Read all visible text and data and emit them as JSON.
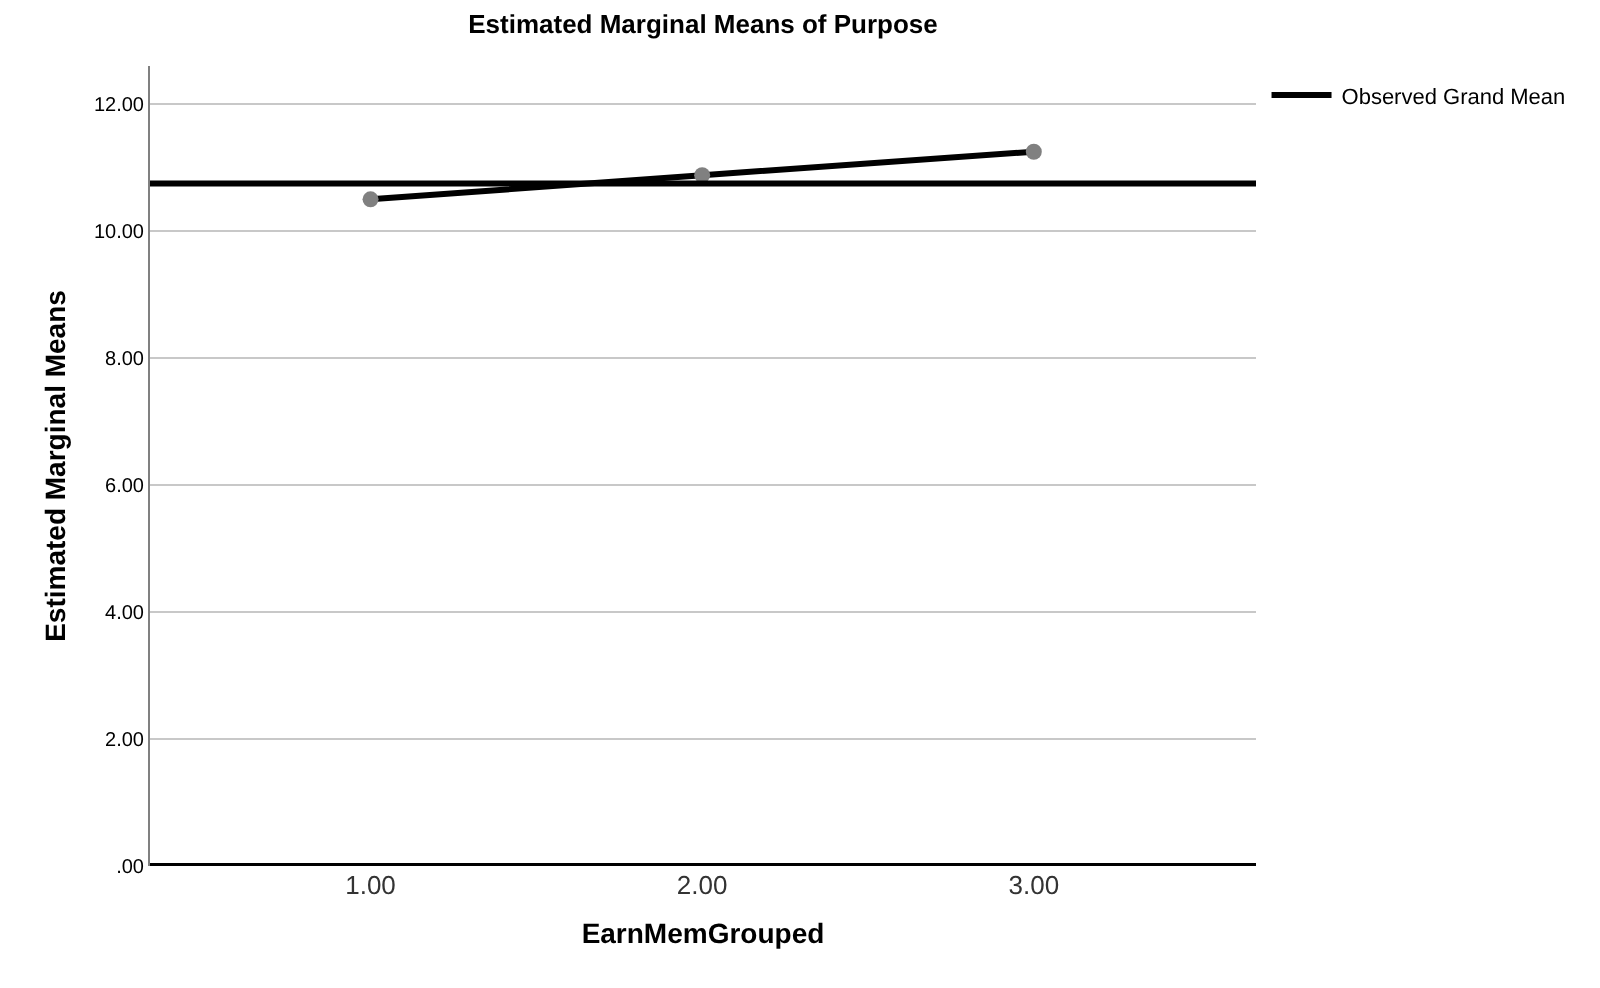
{
  "chart_data": {
    "type": "line",
    "title": "Estimated Marginal Means of Purpose",
    "xlabel": "EarnMemGrouped",
    "ylabel": "Estimated Marginal Means",
    "categories": [
      "1.00",
      "2.00",
      "3.00"
    ],
    "series": [
      {
        "color": "#000000",
        "values": [
          10.5,
          10.88,
          11.25
        ]
      }
    ],
    "ylim": [
      0,
      12.6
    ],
    "yticks": [
      {
        "value": 0,
        "label": ".00"
      },
      {
        "value": 2,
        "label": "2.00"
      },
      {
        "value": 4,
        "label": "4.00"
      },
      {
        "value": 6,
        "label": "6.00"
      },
      {
        "value": 8,
        "label": "8.00"
      },
      {
        "value": 10,
        "label": "10.00"
      },
      {
        "value": 12,
        "label": "12.00"
      }
    ],
    "ref_lines": [
      {
        "axis": "y",
        "value": 10.75,
        "label": "Observed Grand Mean",
        "color": "#000000"
      }
    ],
    "grid": "y",
    "legend": "top right",
    "marker": "circle",
    "line_style": "solid"
  }
}
